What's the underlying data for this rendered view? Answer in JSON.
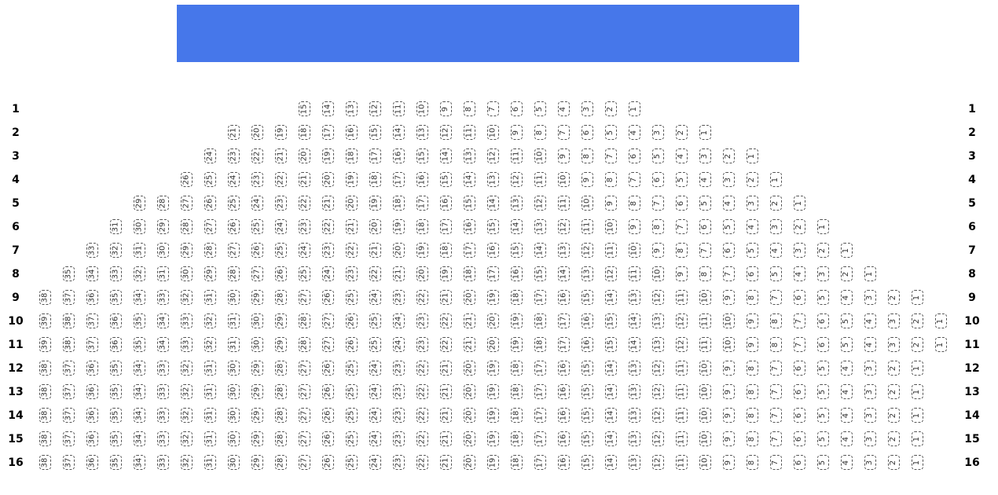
{
  "screen": {
    "color": "#4677ea"
  },
  "rows": [
    {
      "label": "1",
      "seats": 15
    },
    {
      "label": "2",
      "seats": 21
    },
    {
      "label": "3",
      "seats": 24
    },
    {
      "label": "4",
      "seats": 26
    },
    {
      "label": "5",
      "seats": 29
    },
    {
      "label": "6",
      "seats": 31
    },
    {
      "label": "7",
      "seats": 33
    },
    {
      "label": "8",
      "seats": 35
    },
    {
      "label": "9",
      "seats": 38
    },
    {
      "label": "10",
      "seats": 39
    },
    {
      "label": "11",
      "seats": 39
    },
    {
      "label": "12",
      "seats": 38
    },
    {
      "label": "13",
      "seats": 38
    },
    {
      "label": "14",
      "seats": 38
    },
    {
      "label": "15",
      "seats": 38
    },
    {
      "label": "16",
      "seats": 38
    }
  ]
}
